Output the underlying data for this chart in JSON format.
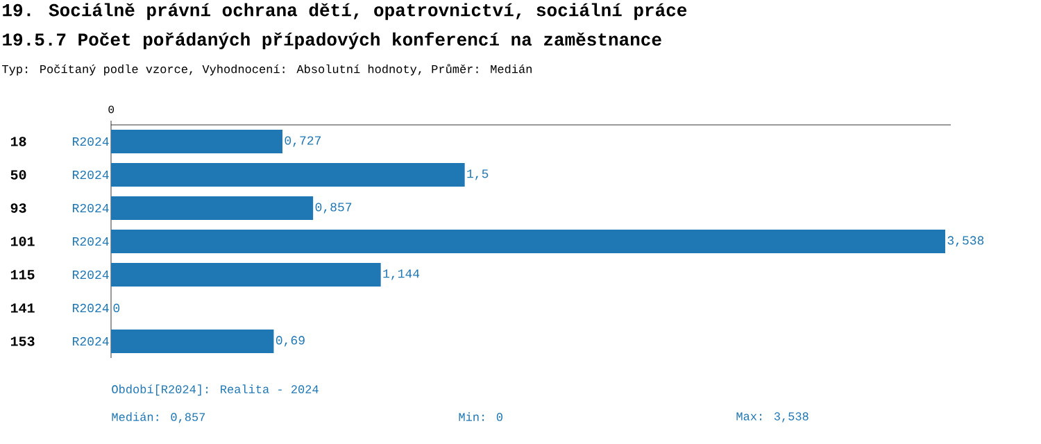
{
  "chart_data": {
    "type": "bar",
    "orientation": "horizontal",
    "title": "19. Sociálně právní ochrana dětí, opatrovnictví, sociální práce",
    "subtitle": "19.5.7 Počet pořádaných případových konferencí na zaměstnance",
    "annotations": [
      "Typ: Počítaný podle vzorce, Vyhodnocení: Absolutní hodnoty, Průměr: Medián",
      "Období[R2024]: Realita - 2024",
      "Medián: 0,857",
      "Min: 0",
      "Max: 3,538",
      "0"
    ],
    "categories": [
      "18",
      "50",
      "93",
      "101",
      "115",
      "141",
      "153"
    ],
    "series": [
      {
        "name": "R2024",
        "color": "#1f77b4",
        "values": [
          0.727,
          1.5,
          0.857,
          3.538,
          1.144,
          0,
          0.69
        ],
        "value_labels": [
          "0,727",
          "1,5",
          "0,857",
          "3,538",
          "1,144",
          "0",
          "0,69"
        ]
      }
    ],
    "legend": false
  }
}
